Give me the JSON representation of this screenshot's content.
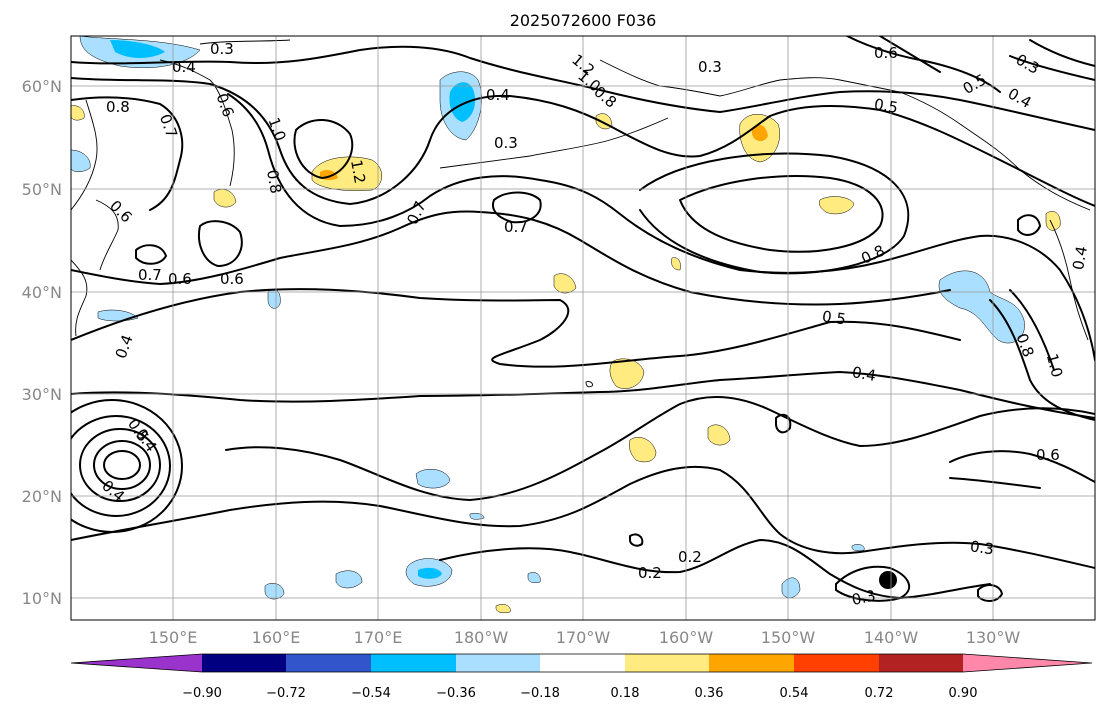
{
  "title": "2025072600 F036",
  "map": {
    "lat_labels": [
      "60°N",
      "50°N",
      "40°N",
      "30°N",
      "20°N",
      "10°N"
    ],
    "lon_labels": [
      "150°E",
      "160°E",
      "170°E",
      "180°W",
      "170°W",
      "160°W",
      "150°W",
      "140°W",
      "130°W"
    ],
    "grid": true
  },
  "contour_labels": [
    "0.3",
    "0.4",
    "0.8",
    "0.7",
    "0.6",
    "1.0",
    "0.8",
    "1.2",
    "0.6",
    "0.7",
    "0.6",
    "0.6",
    "0.4",
    "0.3",
    "0.7",
    "1.2",
    "1.0",
    "0.8",
    "0.3",
    "0.4",
    "0.7",
    "0.6",
    "0.5",
    "0.5",
    "0.4",
    "0.3",
    "0.8",
    "0.5",
    "0.4",
    "0.8",
    "1.0",
    "0.4",
    "0.6",
    "0.2",
    "0.2",
    "0.3",
    "0.3",
    "0.4",
    "0.5",
    "0.4"
  ],
  "colorbar": {
    "tick_labels": [
      "−0.90",
      "−0.72",
      "−0.54",
      "−0.36",
      "−0.18",
      "0.18",
      "0.36",
      "0.54",
      "0.72",
      "0.90"
    ],
    "colors": [
      "#9933cc",
      "#000080",
      "#3355cc",
      "#00bfff",
      "#aadfff",
      "#ffffff",
      "#ffeb80",
      "#ffa500",
      "#ff4000",
      "#b22222",
      "#ff88aa"
    ]
  }
}
